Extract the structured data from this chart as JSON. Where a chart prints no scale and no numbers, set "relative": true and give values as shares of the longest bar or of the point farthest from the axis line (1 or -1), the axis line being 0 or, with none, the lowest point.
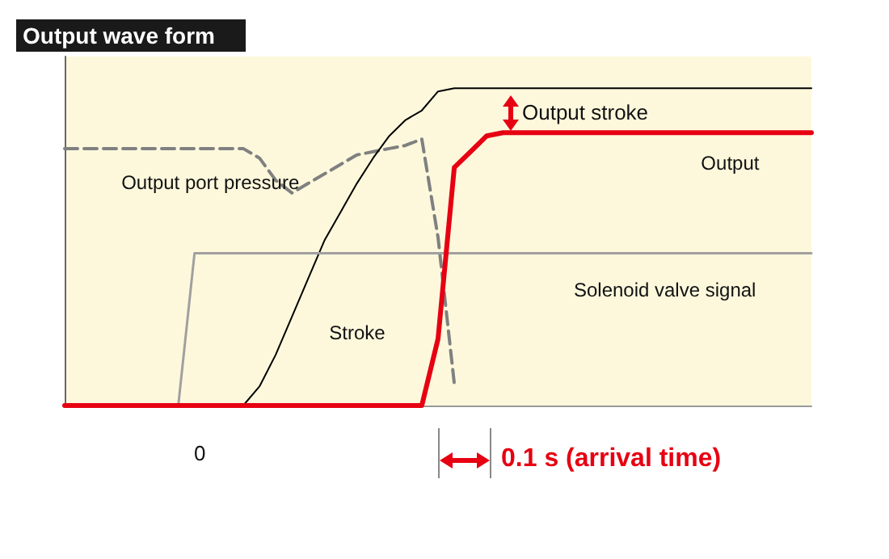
{
  "chart_data": {
    "type": "line",
    "title": "Output wave form",
    "relative": true,
    "legend": false,
    "grid": false,
    "categories": [
      null,
      null,
      null,
      null,
      null,
      null,
      null,
      null,
      null,
      null,
      null,
      null,
      null,
      null,
      null,
      null,
      null,
      null,
      null,
      null,
      null,
      null,
      null,
      null,
      null,
      null,
      null,
      null,
      null,
      null,
      null,
      null,
      null,
      null,
      null,
      null,
      null,
      null,
      null,
      null,
      null,
      null,
      null,
      null,
      null,
      null,
      null
    ],
    "series": [
      {
        "name": "Output port pressure",
        "color": "#808080",
        "line_style": "dashed",
        "values": [
          0.81,
          0.81,
          0.81,
          0.81,
          0.81,
          0.81,
          0.81,
          0.81,
          0.81,
          0.81,
          0.81,
          0.81,
          0.78,
          0.71,
          0.67,
          0.7,
          0.73,
          0.76,
          0.79,
          0.8,
          0.81,
          0.82,
          0.84,
          0.53,
          0.07,
          null,
          null,
          null,
          null,
          null,
          null,
          null,
          null,
          null,
          null,
          null,
          null,
          null,
          null,
          null,
          null,
          null,
          null,
          null,
          null,
          null,
          null
        ]
      },
      {
        "name": "Stroke",
        "color": "#000000",
        "values": [
          0,
          0,
          0,
          0,
          0,
          0,
          0,
          0,
          0,
          0,
          0,
          0,
          0.06,
          0.16,
          0.28,
          0.4,
          0.52,
          0.61,
          0.7,
          0.78,
          0.85,
          0.9,
          0.93,
          0.99,
          1,
          1,
          1,
          1,
          1,
          1,
          1,
          1,
          1,
          1,
          1,
          1,
          1,
          1,
          1,
          1,
          1,
          1,
          1,
          1,
          1,
          1,
          1
        ]
      },
      {
        "name": "Solenoid valve signal",
        "color": "#a0a0a0",
        "values": [
          0,
          0,
          0,
          0,
          0,
          0,
          0,
          0,
          0.48,
          0.48,
          0.48,
          0.48,
          0.48,
          0.48,
          0.48,
          0.48,
          0.48,
          0.48,
          0.48,
          0.48,
          0.48,
          0.48,
          0.48,
          0.48,
          0.48,
          0.48,
          0.48,
          0.48,
          0.48,
          0.48,
          0.48,
          0.48,
          0.48,
          0.48,
          0.48,
          0.48,
          0.48,
          0.48,
          0.48,
          0.48,
          0.48,
          0.48,
          0.48,
          0.48,
          0.48,
          0.48,
          0.48
        ]
      },
      {
        "name": "Output",
        "color": "#e60012",
        "values": [
          0,
          0,
          0,
          0,
          0,
          0,
          0,
          0,
          0,
          0,
          0,
          0,
          0,
          0,
          0,
          0,
          0,
          0,
          0,
          0,
          0,
          0,
          0,
          0.21,
          0.75,
          0.8,
          0.85,
          0.86,
          0.86,
          0.86,
          0.86,
          0.86,
          0.86,
          0.86,
          0.86,
          0.86,
          0.86,
          0.86,
          0.86,
          0.86,
          0.86,
          0.86,
          0.86,
          0.86,
          0.86,
          0.86,
          0.86
        ]
      }
    ],
    "annotations": [
      "Output stroke",
      "0.1 s (arrival time)",
      "0"
    ]
  }
}
